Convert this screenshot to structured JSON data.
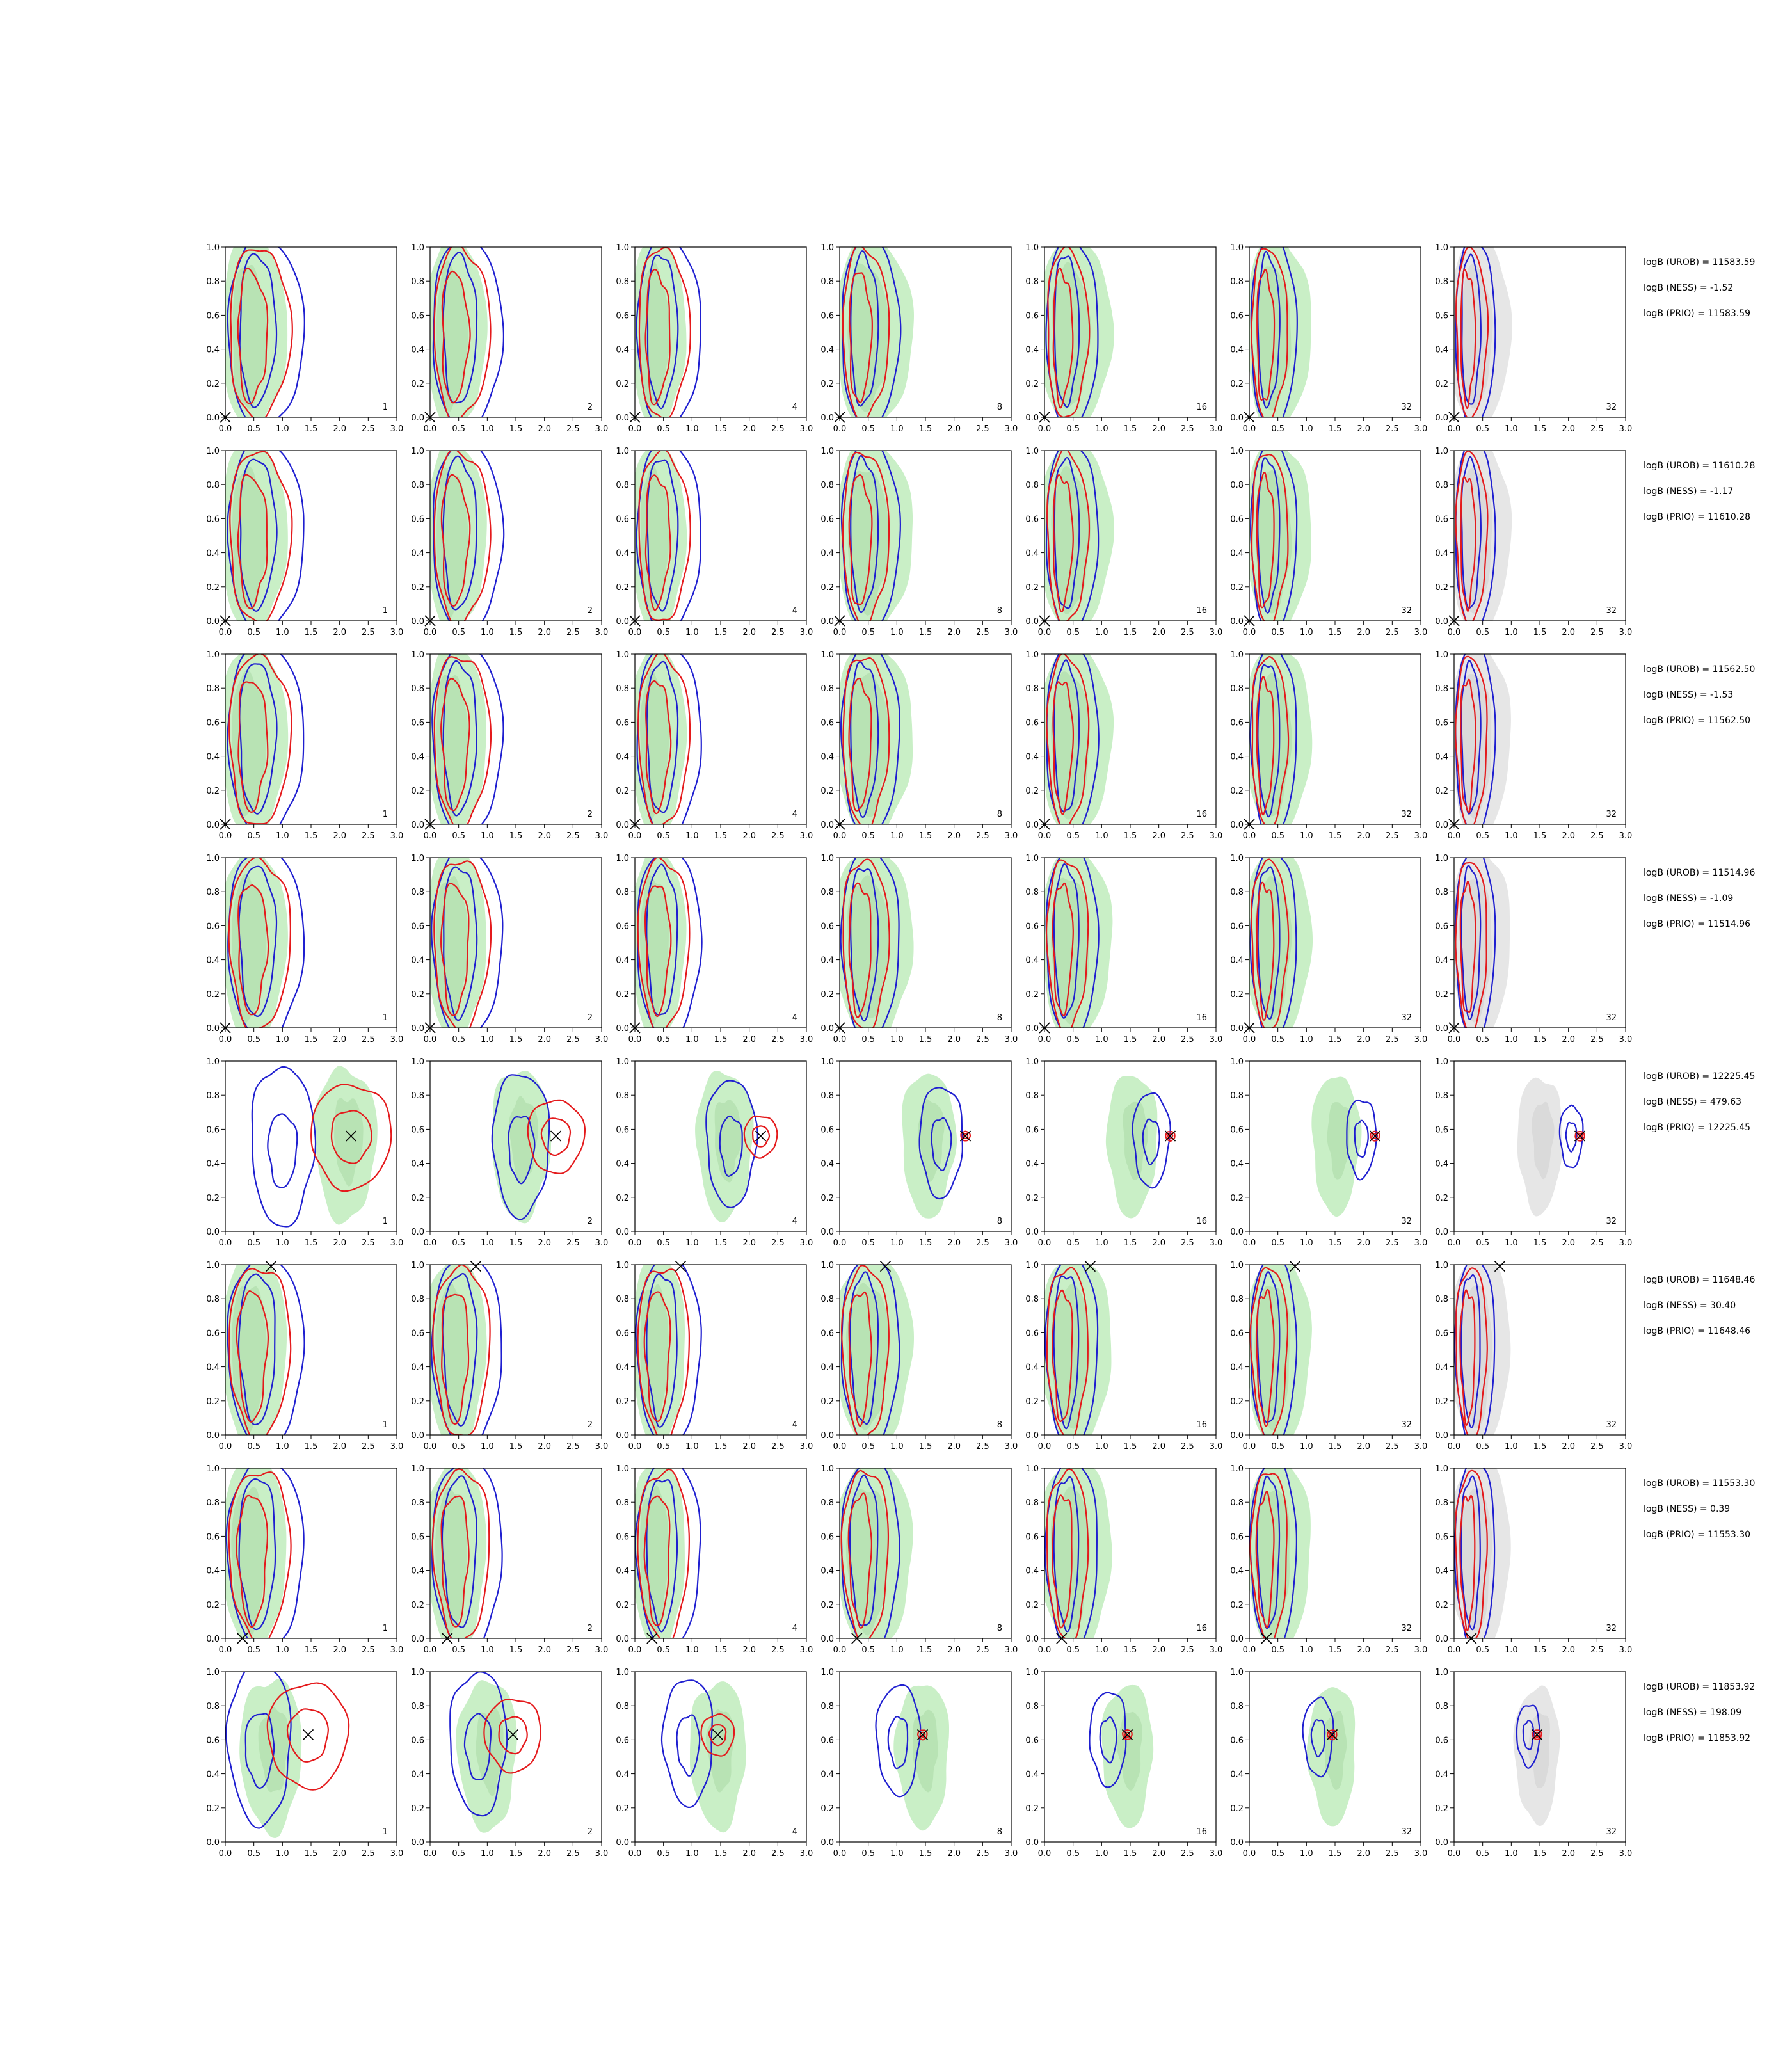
{
  "chart_data": {
    "type": "contour-grid",
    "rows": 8,
    "cols": 7,
    "xlim": [
      0,
      3
    ],
    "ylim": [
      0,
      1
    ],
    "xticks": [
      "0.0",
      "0.5",
      "1.0",
      "1.5",
      "2.0",
      "2.5",
      "3.0"
    ],
    "yticks": [
      "0.0",
      "0.2",
      "0.4",
      "0.6",
      "0.8",
      "1.0"
    ],
    "panel_labels": [
      "1",
      "2",
      "4",
      "8",
      "16",
      "32",
      "32"
    ],
    "colors": {
      "fill_outer": "#c9efc6",
      "fill_inner": "#aedaa9",
      "fill_grey_outer": "#e6e6e6",
      "fill_grey_inner": "#d2d2d2",
      "red": "#e41a1c",
      "blue": "#1f1fd0",
      "marker": "#000000"
    },
    "rows_data": [
      {
        "stats": [
          "logB (UROB) = 11583.59",
          "logB (NESS) = -1.52",
          "logB (PRIO) = 11583.59"
        ],
        "mode": "strip",
        "truth": [
          0,
          0
        ]
      },
      {
        "stats": [
          "logB (UROB) = 11610.28",
          "logB (NESS) = -1.17",
          "logB (PRIO) = 11610.28"
        ],
        "mode": "strip",
        "truth": [
          0,
          0
        ]
      },
      {
        "stats": [
          "logB (UROB) = 11562.50",
          "logB (NESS) = -1.53",
          "logB (PRIO) = 11562.50"
        ],
        "mode": "strip",
        "truth": [
          0,
          0
        ]
      },
      {
        "stats": [
          "logB (UROB) = 11514.96",
          "logB (NESS) = -1.09",
          "logB (PRIO) = 11514.96"
        ],
        "mode": "strip",
        "truth": [
          0,
          0
        ]
      },
      {
        "stats": [
          "logB (UROB) = 12225.45",
          "logB (NESS) = 479.63",
          "logB (PRIO) = 12225.45"
        ],
        "mode": "peak",
        "truth": [
          2.2,
          0.56
        ]
      },
      {
        "stats": [
          "logB (UROB) = 11648.46",
          "logB (NESS) = 30.40",
          "logB (PRIO) = 11648.46"
        ],
        "mode": "strip",
        "truth": [
          0.8,
          0.99
        ]
      },
      {
        "stats": [
          "logB (UROB) = 11553.30",
          "logB (NESS) = 0.39",
          "logB (PRIO) = 11553.30"
        ],
        "mode": "strip",
        "truth": [
          0.3,
          0
        ]
      },
      {
        "stats": [
          "logB (UROB) = 11853.92",
          "logB (NESS) = 198.09",
          "logB (PRIO) = 11853.92"
        ],
        "mode": "peak",
        "truth": [
          1.45,
          0.63
        ]
      }
    ]
  }
}
